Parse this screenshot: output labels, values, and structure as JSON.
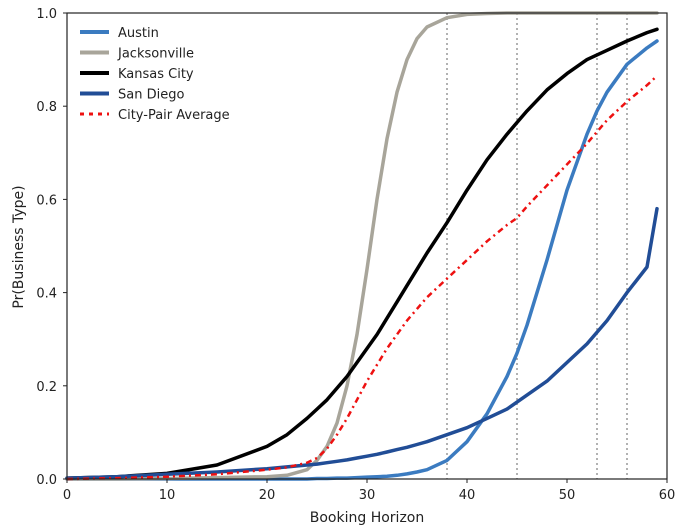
{
  "chart_data": {
    "type": "line",
    "title": "",
    "xlabel": "Booking Horizon",
    "ylabel": "Pr(Business Type)",
    "xlim": [
      0,
      60
    ],
    "ylim": [
      0,
      1.0
    ],
    "x_ticks": [
      0,
      10,
      20,
      30,
      40,
      50,
      60
    ],
    "y_ticks": [
      0.0,
      0.2,
      0.4,
      0.6,
      0.8,
      1.0
    ],
    "x_tick_labels": [
      "0",
      "10",
      "20",
      "30",
      "40",
      "50",
      "60"
    ],
    "y_tick_labels": [
      "0.0",
      "0.2",
      "0.4",
      "0.6",
      "0.8",
      "1.0"
    ],
    "grid": false,
    "legend_position": "top-left",
    "x": [
      0,
      5,
      10,
      15,
      20,
      22,
      24,
      25,
      26,
      27,
      28,
      29,
      30,
      31,
      32,
      33,
      34,
      35,
      36,
      38,
      40,
      42,
      44,
      45,
      46,
      48,
      50,
      52,
      53,
      54,
      56,
      58,
      59
    ],
    "series": [
      {
        "name": "Austin",
        "color": "#3b7bc0",
        "dash": "solid",
        "values": [
          0.0,
          0.0,
          0.0,
          0.0,
          0.0,
          0.0,
          0.0,
          0.001,
          0.001,
          0.002,
          0.002,
          0.003,
          0.004,
          0.005,
          0.006,
          0.008,
          0.011,
          0.015,
          0.02,
          0.04,
          0.08,
          0.14,
          0.22,
          0.27,
          0.33,
          0.47,
          0.62,
          0.74,
          0.79,
          0.83,
          0.89,
          0.925,
          0.94
        ]
      },
      {
        "name": "Jacksonville",
        "color": "#a8a59a",
        "dash": "solid",
        "values": [
          0.0,
          0.0,
          0.001,
          0.003,
          0.005,
          0.008,
          0.02,
          0.04,
          0.07,
          0.12,
          0.2,
          0.31,
          0.45,
          0.6,
          0.73,
          0.83,
          0.9,
          0.945,
          0.97,
          0.99,
          0.997,
          0.999,
          1.0,
          1.0,
          1.0,
          1.0,
          1.0,
          1.0,
          1.0,
          1.0,
          1.0,
          1.0,
          1.0
        ]
      },
      {
        "name": "Kansas City",
        "color": "#000000",
        "dash": "solid",
        "values": [
          0.002,
          0.005,
          0.012,
          0.03,
          0.07,
          0.095,
          0.13,
          0.15,
          0.17,
          0.195,
          0.22,
          0.25,
          0.28,
          0.31,
          0.345,
          0.38,
          0.415,
          0.45,
          0.485,
          0.55,
          0.62,
          0.685,
          0.74,
          0.765,
          0.79,
          0.835,
          0.87,
          0.9,
          0.91,
          0.92,
          0.94,
          0.958,
          0.965
        ]
      },
      {
        "name": "San Diego",
        "color": "#214d96",
        "dash": "solid",
        "values": [
          0.002,
          0.005,
          0.01,
          0.015,
          0.022,
          0.026,
          0.03,
          0.032,
          0.035,
          0.038,
          0.041,
          0.045,
          0.049,
          0.053,
          0.058,
          0.063,
          0.068,
          0.074,
          0.08,
          0.095,
          0.11,
          0.13,
          0.15,
          0.165,
          0.18,
          0.21,
          0.25,
          0.29,
          0.315,
          0.34,
          0.4,
          0.455,
          0.58
        ]
      },
      {
        "name": "City-Pair Average",
        "color": "#ee1111",
        "dash": "dashdot",
        "values": [
          0.0,
          0.002,
          0.005,
          0.01,
          0.02,
          0.025,
          0.035,
          0.045,
          0.065,
          0.095,
          0.13,
          0.17,
          0.21,
          0.245,
          0.28,
          0.31,
          0.34,
          0.365,
          0.39,
          0.43,
          0.47,
          0.51,
          0.545,
          0.56,
          0.585,
          0.63,
          0.675,
          0.72,
          0.745,
          0.77,
          0.81,
          0.845,
          0.865
        ]
      }
    ],
    "vertical_reference_lines": [
      38,
      45,
      53,
      56
    ]
  }
}
